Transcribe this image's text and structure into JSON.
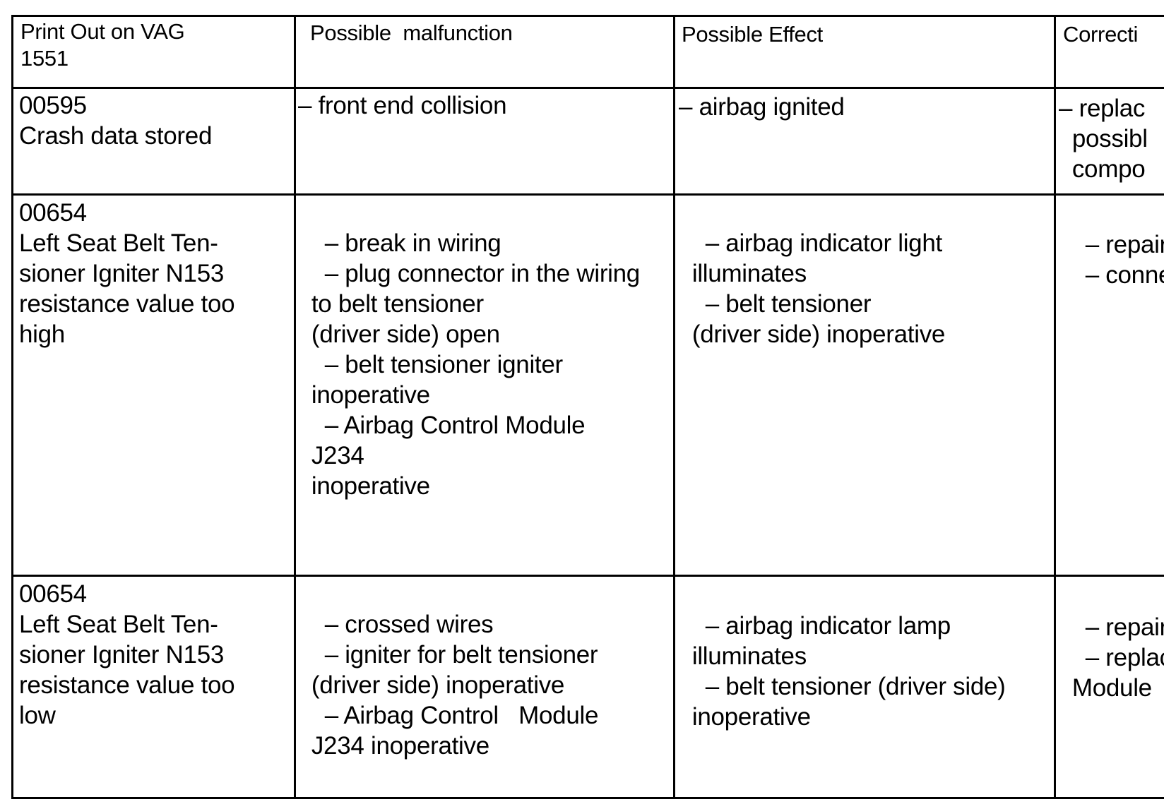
{
  "headers": [
    "Print Out on VAG\n1551",
    "Possible  malfunction",
    "Possible Effect",
    "Correcti"
  ],
  "rows": [
    {
      "code": "00595\nCrash data stored",
      "malfunction": [
        "– front end collision"
      ],
      "effect": [
        "– airbag ignited"
      ],
      "corrective": [
        "– replac\n  possibl\n  compo"
      ]
    },
    {
      "code": "00654\nLeft Seat Belt Ten-\nsioner Igniter N153\nresistance value too\nhigh",
      "malfunction": [
        "– break in wiring",
        "– plug connector in the wiring\n  to belt tensioner\n  (driver side) open",
        "– belt tensioner igniter\n  inoperative",
        "– Airbag Control Module\n  J234\n  inoperative"
      ],
      "effect": [
        "– airbag indicator light\n  illuminates",
        "– belt tensioner\n  (driver side) inoperative"
      ],
      "corrective": [
        "– repair",
        "– conne"
      ]
    },
    {
      "code": "00654\nLeft Seat Belt Ten-\nsioner Igniter N153\nresistance value too\nlow",
      "malfunction": [
        "– crossed wires",
        "– igniter for belt tensioner\n  (driver side) inoperative",
        "– Airbag Control   Module\n  J234 inoperative"
      ],
      "effect": [
        "– airbag indicator lamp\n  illuminates",
        "– belt tensioner (driver side)\n  inoperative"
      ],
      "corrective": [
        "– repair",
        "– replace\n  Module"
      ]
    }
  ]
}
